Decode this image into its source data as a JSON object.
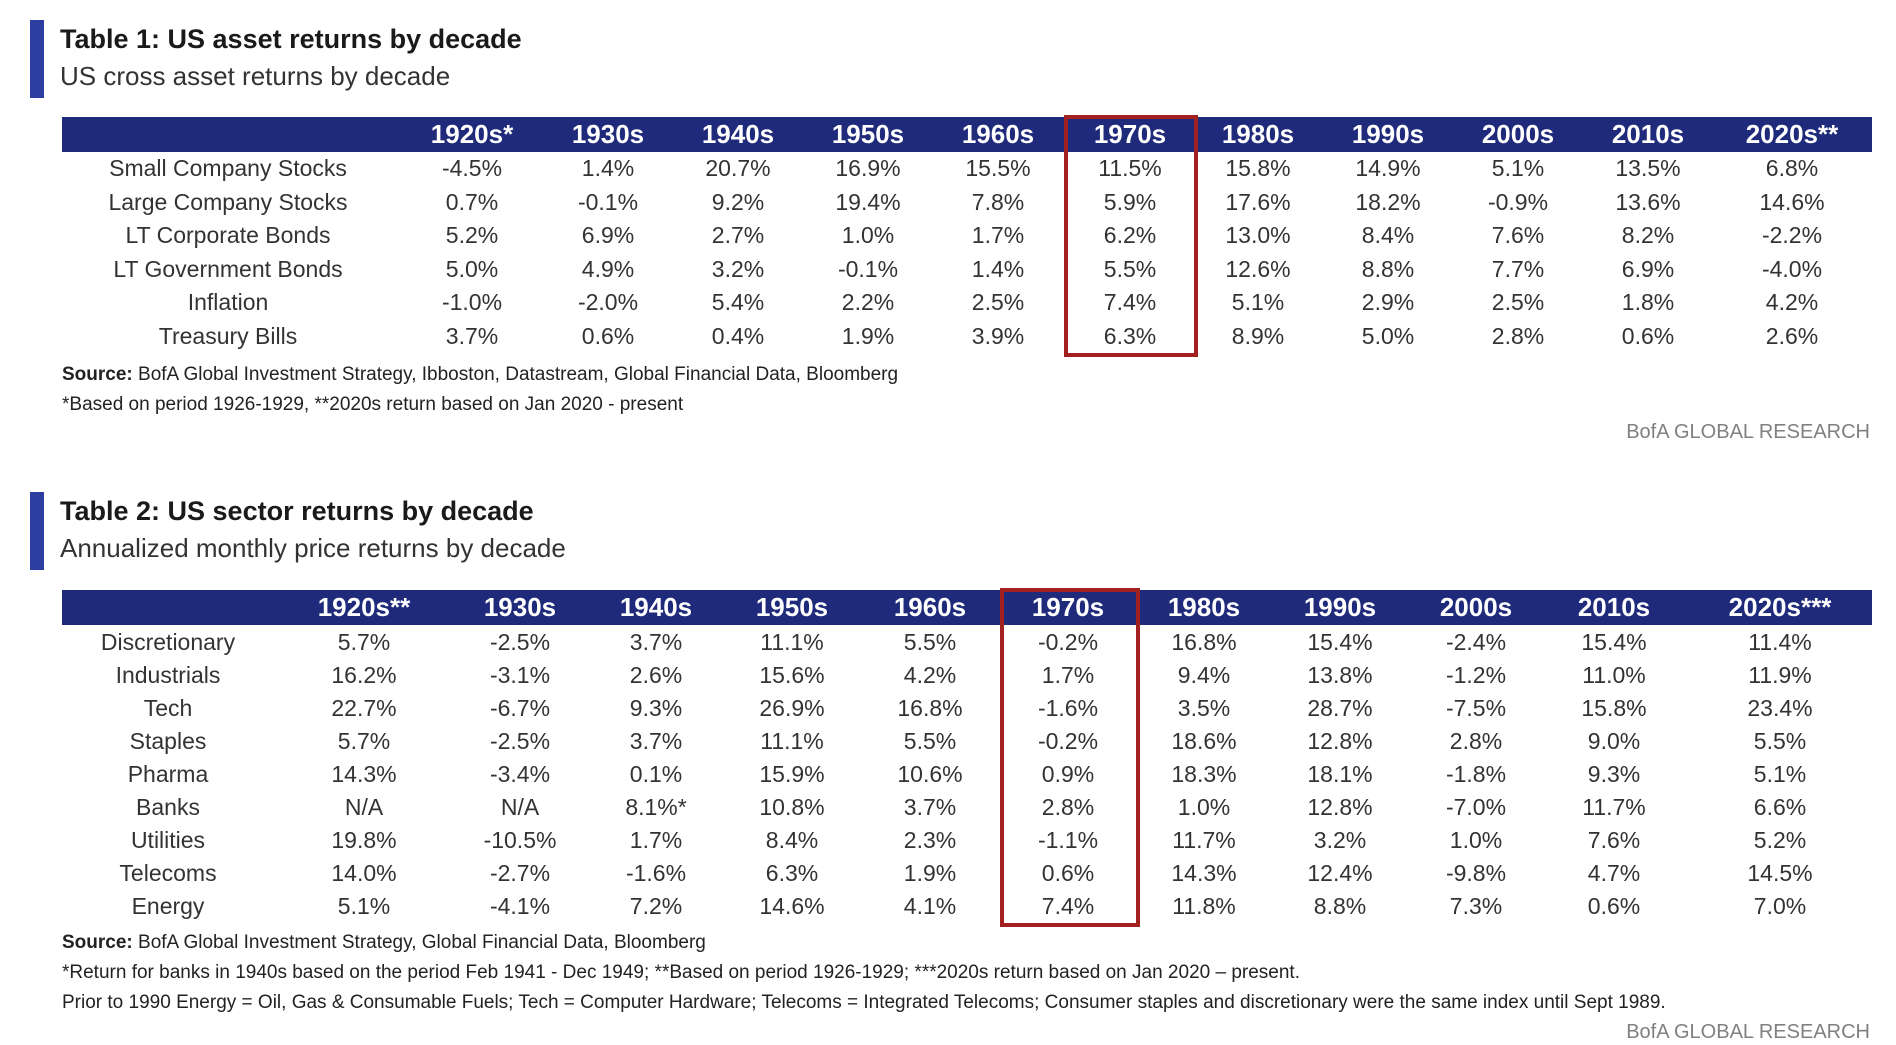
{
  "table1": {
    "title": "Table 1: US asset returns by decade",
    "subtitle": "US cross asset returns by decade",
    "columns": [
      "1920s*",
      "1930s",
      "1940s",
      "1950s",
      "1960s",
      "1970s",
      "1980s",
      "1990s",
      "2000s",
      "2010s",
      "2020s**"
    ],
    "highlighted_column": "1970s",
    "rows": [
      {
        "label": "Small Company Stocks",
        "values": [
          "-4.5%",
          "1.4%",
          "20.7%",
          "16.9%",
          "15.5%",
          "11.5%",
          "15.8%",
          "14.9%",
          "5.1%",
          "13.5%",
          "6.8%"
        ]
      },
      {
        "label": "Large Company Stocks",
        "values": [
          "0.7%",
          "-0.1%",
          "9.2%",
          "19.4%",
          "7.8%",
          "5.9%",
          "17.6%",
          "18.2%",
          "-0.9%",
          "13.6%",
          "14.6%"
        ]
      },
      {
        "label": "LT Corporate Bonds",
        "values": [
          "5.2%",
          "6.9%",
          "2.7%",
          "1.0%",
          "1.7%",
          "6.2%",
          "13.0%",
          "8.4%",
          "7.6%",
          "8.2%",
          "-2.2%"
        ]
      },
      {
        "label": "LT Government Bonds",
        "values": [
          "5.0%",
          "4.9%",
          "3.2%",
          "-0.1%",
          "1.4%",
          "5.5%",
          "12.6%",
          "8.8%",
          "7.7%",
          "6.9%",
          "-4.0%"
        ]
      },
      {
        "label": "Inflation",
        "values": [
          "-1.0%",
          "-2.0%",
          "5.4%",
          "2.2%",
          "2.5%",
          "7.4%",
          "5.1%",
          "2.9%",
          "2.5%",
          "1.8%",
          "4.2%"
        ]
      },
      {
        "label": "Treasury Bills",
        "values": [
          "3.7%",
          "0.6%",
          "0.4%",
          "1.9%",
          "3.9%",
          "6.3%",
          "8.9%",
          "5.0%",
          "2.8%",
          "0.6%",
          "2.6%"
        ]
      }
    ],
    "source_label": "Source:",
    "source_text": " BofA Global Investment Strategy, Ibboston, Datastream, Global Financial Data, Bloomberg",
    "footnotes": [
      "*Based on period 1926-1929, **2020s return based on Jan 2020 - present"
    ],
    "brand": "BofA GLOBAL RESEARCH"
  },
  "table2": {
    "title": "Table 2: US sector returns by decade",
    "subtitle": "Annualized monthly price returns by decade",
    "columns": [
      "1920s**",
      "1930s",
      "1940s",
      "1950s",
      "1960s",
      "1970s",
      "1980s",
      "1990s",
      "2000s",
      "2010s",
      "2020s***"
    ],
    "highlighted_column": "1970s",
    "rows": [
      {
        "label": "Discretionary",
        "values": [
          "5.7%",
          "-2.5%",
          "3.7%",
          "11.1%",
          "5.5%",
          "-0.2%",
          "16.8%",
          "15.4%",
          "-2.4%",
          "15.4%",
          "11.4%"
        ]
      },
      {
        "label": "Industrials",
        "values": [
          "16.2%",
          "-3.1%",
          "2.6%",
          "15.6%",
          "4.2%",
          "1.7%",
          "9.4%",
          "13.8%",
          "-1.2%",
          "11.0%",
          "11.9%"
        ]
      },
      {
        "label": "Tech",
        "values": [
          "22.7%",
          "-6.7%",
          "9.3%",
          "26.9%",
          "16.8%",
          "-1.6%",
          "3.5%",
          "28.7%",
          "-7.5%",
          "15.8%",
          "23.4%"
        ]
      },
      {
        "label": "Staples",
        "values": [
          "5.7%",
          "-2.5%",
          "3.7%",
          "11.1%",
          "5.5%",
          "-0.2%",
          "18.6%",
          "12.8%",
          "2.8%",
          "9.0%",
          "5.5%"
        ]
      },
      {
        "label": "Pharma",
        "values": [
          "14.3%",
          "-3.4%",
          "0.1%",
          "15.9%",
          "10.6%",
          "0.9%",
          "18.3%",
          "18.1%",
          "-1.8%",
          "9.3%",
          "5.1%"
        ]
      },
      {
        "label": "Banks",
        "values": [
          "N/A",
          "N/A",
          "8.1%*",
          "10.8%",
          "3.7%",
          "2.8%",
          "1.0%",
          "12.8%",
          "-7.0%",
          "11.7%",
          "6.6%"
        ]
      },
      {
        "label": "Utilities",
        "values": [
          "19.8%",
          "-10.5%",
          "1.7%",
          "8.4%",
          "2.3%",
          "-1.1%",
          "11.7%",
          "3.2%",
          "1.0%",
          "7.6%",
          "5.2%"
        ]
      },
      {
        "label": "Telecoms",
        "values": [
          "14.0%",
          "-2.7%",
          "-1.6%",
          "6.3%",
          "1.9%",
          "0.6%",
          "14.3%",
          "12.4%",
          "-9.8%",
          "4.7%",
          "14.5%"
        ]
      },
      {
        "label": "Energy",
        "values": [
          "5.1%",
          "-4.1%",
          "7.2%",
          "14.6%",
          "4.1%",
          "7.4%",
          "11.8%",
          "8.8%",
          "7.3%",
          "0.6%",
          "7.0%"
        ]
      }
    ],
    "source_label": "Source:",
    "source_text": " BofA Global Investment Strategy, Global Financial Data, Bloomberg",
    "footnotes": [
      "*Return for banks in 1940s based on the period Feb 1941 - Dec 1949; **Based on period 1926-1929; ***2020s return based on Jan 2020 – present.",
      "Prior to 1990 Energy = Oil, Gas & Consumable Fuels; Tech = Computer Hardware; Telecoms = Integrated Telecoms; Consumer staples and discretionary were the same index until Sept 1989."
    ],
    "brand": "BofA GLOBAL RESEARCH"
  },
  "colors": {
    "header_bg": "#1f2a7a",
    "accent_bar": "#2c3ea0",
    "highlight_border": "#a32020"
  }
}
